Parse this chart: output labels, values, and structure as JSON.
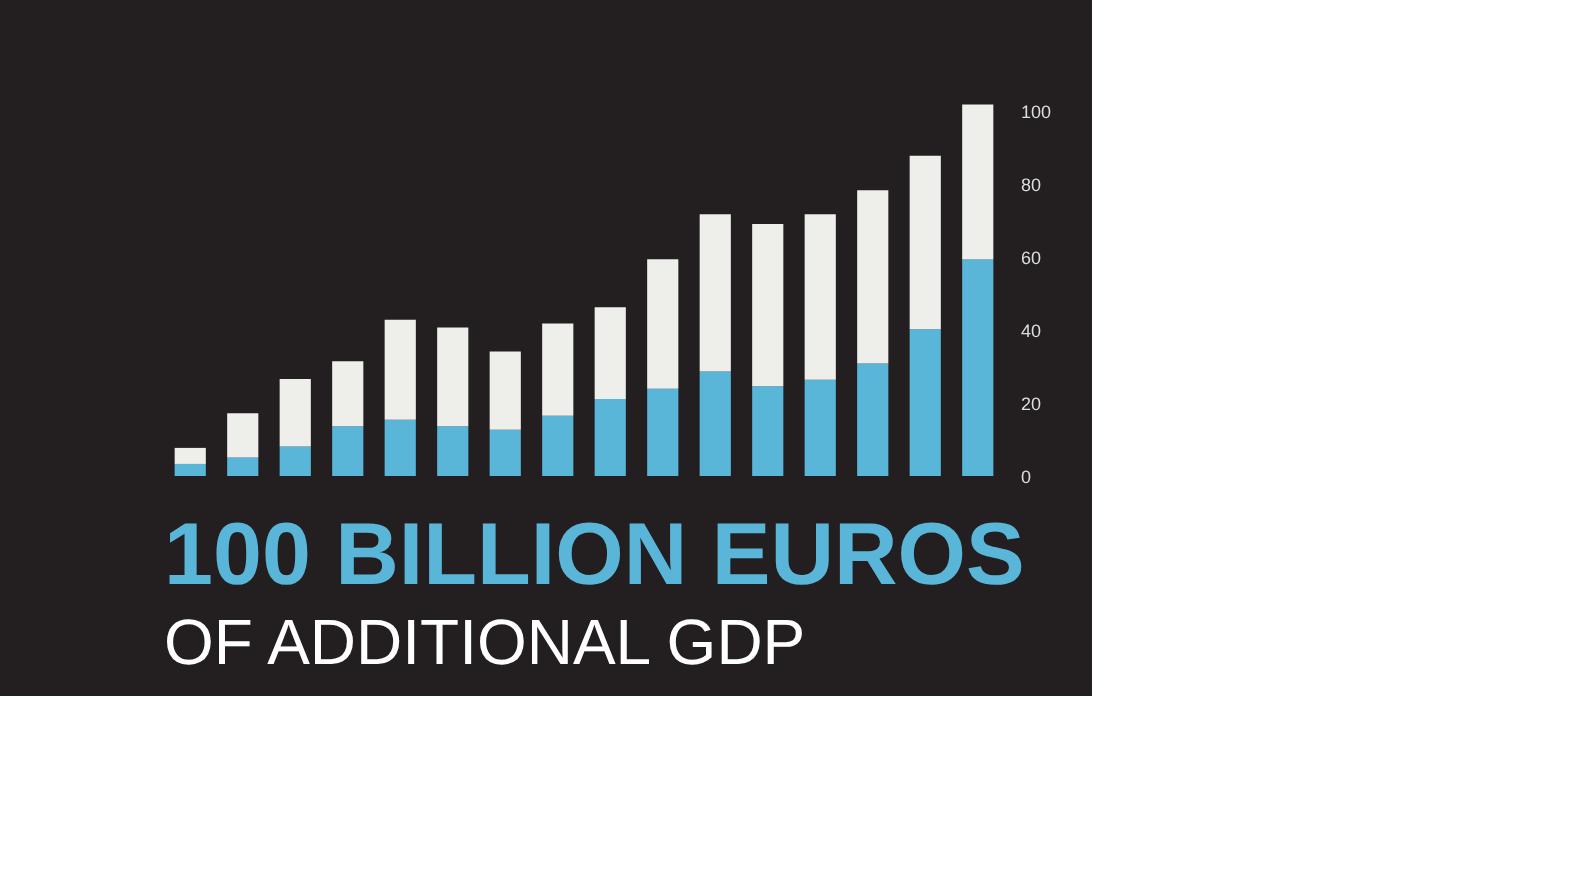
{
  "chart_data": {
    "type": "bar",
    "title": "100 BILLION EUROS",
    "subtitle": "OF ADDITIONAL GDP",
    "stacked": true,
    "categories": [
      null,
      null,
      null,
      null,
      null,
      null,
      null,
      null,
      null,
      null,
      null,
      null,
      null,
      null,
      null,
      null
    ],
    "series": [
      {
        "color": "#5ab6d8",
        "values": [
          3.3,
          5.1,
          8.1,
          13.6,
          15.4,
          13.6,
          12.7,
          16.5,
          21.1,
          23.9,
          28.6,
          24.6,
          26.4,
          30.8,
          40.2,
          59.3
        ]
      },
      {
        "color": "#eeeeea",
        "values": [
          4.4,
          12.1,
          18.5,
          17.8,
          27.4,
          27.1,
          21.4,
          25.3,
          25.1,
          35.5,
          43.1,
          44.4,
          45.3,
          47.5,
          47.5,
          42.5
        ]
      }
    ],
    "ylim": [
      0,
      103
    ],
    "yticks": [
      0,
      20,
      40,
      60,
      80,
      100
    ],
    "grid": false,
    "legend": false,
    "tick_labels": "y"
  }
}
